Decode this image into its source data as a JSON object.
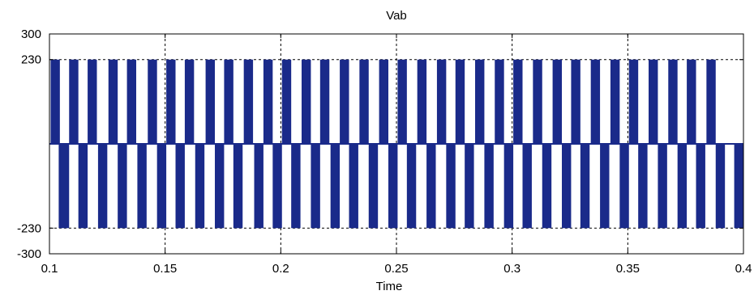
{
  "chart_data": {
    "type": "line",
    "title": "Vab",
    "xlabel": "Time",
    "ylabel": "",
    "xlim": [
      0.1,
      0.4
    ],
    "ylim": [
      -300,
      300
    ],
    "xticks": [
      "0.1",
      "0.15",
      "0.2",
      "0.25",
      "0.3",
      "0.35",
      "0.4"
    ],
    "yticks": [
      "300",
      "230",
      "-230",
      "-300"
    ],
    "grid": true,
    "legend": "none",
    "colors": {
      "series": "#1a2a8a",
      "axes": "#000000",
      "background": "#ffffff"
    },
    "waveform": {
      "description_values": "line-to-line PWM voltage switching between +230, 0 and -230",
      "high_level": 230,
      "low_level": -230,
      "positive_blocks": [
        [
          0.1005,
          0.1045
        ],
        [
          0.1085,
          0.1125
        ],
        [
          0.1165,
          0.1205
        ],
        [
          0.1255,
          0.1295
        ],
        [
          0.1335,
          0.1375
        ],
        [
          0.1425,
          0.1465
        ],
        [
          0.1505,
          0.1545
        ],
        [
          0.1585,
          0.1625
        ],
        [
          0.1675,
          0.1715
        ],
        [
          0.1755,
          0.1795
        ],
        [
          0.184,
          0.188
        ],
        [
          0.1925,
          0.1965
        ],
        [
          0.2005,
          0.2045
        ],
        [
          0.209,
          0.213
        ],
        [
          0.217,
          0.221
        ],
        [
          0.2255,
          0.2295
        ],
        [
          0.234,
          0.238
        ],
        [
          0.2425,
          0.2465
        ],
        [
          0.2505,
          0.2545
        ],
        [
          0.259,
          0.263
        ],
        [
          0.2675,
          0.2715
        ],
        [
          0.2755,
          0.2795
        ],
        [
          0.284,
          0.288
        ],
        [
          0.2925,
          0.2965
        ],
        [
          0.3005,
          0.3045
        ],
        [
          0.309,
          0.313
        ],
        [
          0.3175,
          0.3215
        ],
        [
          0.3255,
          0.3295
        ],
        [
          0.334,
          0.338
        ],
        [
          0.3425,
          0.3465
        ],
        [
          0.3505,
          0.3545
        ],
        [
          0.359,
          0.363
        ],
        [
          0.3675,
          0.3715
        ],
        [
          0.3755,
          0.3795
        ],
        [
          0.384,
          0.388
        ]
      ],
      "negative_blocks": [
        [
          0.104,
          0.1085
        ],
        [
          0.1125,
          0.1165
        ],
        [
          0.121,
          0.125
        ],
        [
          0.1295,
          0.1335
        ],
        [
          0.138,
          0.142
        ],
        [
          0.1465,
          0.1505
        ],
        [
          0.1545,
          0.1585
        ],
        [
          0.163,
          0.167
        ],
        [
          0.1715,
          0.1755
        ],
        [
          0.1795,
          0.1835
        ],
        [
          0.1885,
          0.1925
        ],
        [
          0.1965,
          0.2005
        ],
        [
          0.2045,
          0.2085
        ],
        [
          0.213,
          0.217
        ],
        [
          0.2215,
          0.2255
        ],
        [
          0.2295,
          0.2335
        ],
        [
          0.238,
          0.242
        ],
        [
          0.2465,
          0.2505
        ],
        [
          0.2545,
          0.2585
        ],
        [
          0.263,
          0.267
        ],
        [
          0.2715,
          0.2755
        ],
        [
          0.2795,
          0.2835
        ],
        [
          0.288,
          0.292
        ],
        [
          0.2965,
          0.3005
        ],
        [
          0.3045,
          0.3085
        ],
        [
          0.313,
          0.317
        ],
        [
          0.3215,
          0.3255
        ],
        [
          0.3295,
          0.3335
        ],
        [
          0.338,
          0.342
        ],
        [
          0.3465,
          0.3505
        ],
        [
          0.3545,
          0.3585
        ],
        [
          0.363,
          0.367
        ],
        [
          0.3715,
          0.3755
        ],
        [
          0.3795,
          0.3835
        ],
        [
          0.388,
          0.392
        ],
        [
          0.396,
          0.4
        ]
      ]
    }
  }
}
